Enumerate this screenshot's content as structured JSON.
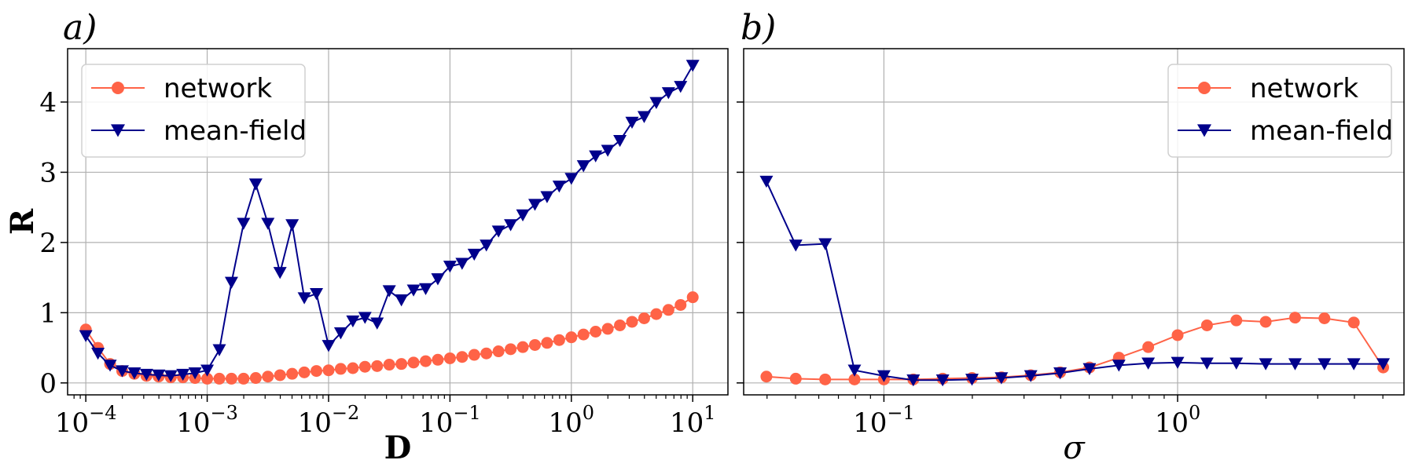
{
  "colors": {
    "network": "#FF6347",
    "mean_field": "#00008B",
    "grid": "#b0b0b0",
    "axes": "#000000"
  },
  "chart_data": [
    {
      "panel": "a)",
      "type": "line",
      "xlabel": "D",
      "ylabel": "R",
      "xscale": "log",
      "xlim": [
        7.08e-05,
        19.5
      ],
      "ylim": [
        -0.17,
        4.76
      ],
      "grid": true,
      "legend_position": "top-left",
      "x_ticks": [
        {
          "v": 0.0001,
          "base": "10",
          "exp": "−4"
        },
        {
          "v": 0.001,
          "base": "10",
          "exp": "−3"
        },
        {
          "v": 0.01,
          "base": "10",
          "exp": "−2"
        },
        {
          "v": 0.1,
          "base": "10",
          "exp": "−1"
        },
        {
          "v": 1,
          "base": "10",
          "exp": "0"
        },
        {
          "v": 10,
          "base": "10",
          "exp": "1"
        }
      ],
      "y_ticks": [
        0,
        1,
        2,
        3,
        4
      ],
      "x": [
        0.0001,
        0.0001259,
        0.0001585,
        0.0001995,
        0.0002512,
        0.0003162,
        0.0003981,
        0.0005012,
        0.000631,
        0.0007943,
        0.001,
        0.001259,
        0.001585,
        0.001995,
        0.002512,
        0.003162,
        0.003981,
        0.005012,
        0.00631,
        0.007943,
        0.01,
        0.01259,
        0.01585,
        0.01995,
        0.02512,
        0.03162,
        0.03981,
        0.05012,
        0.0631,
        0.07943,
        0.1,
        0.1259,
        0.1585,
        0.1995,
        0.2512,
        0.3162,
        0.3981,
        0.5012,
        0.631,
        0.7943,
        1,
        1.259,
        1.585,
        1.995,
        2.512,
        3.162,
        3.981,
        5.012,
        6.31,
        7.943,
        10
      ],
      "series": [
        {
          "name": "network",
          "marker": "circle",
          "color": "#FF6347",
          "values": [
            0.76,
            0.5,
            0.27,
            0.17,
            0.13,
            0.1,
            0.09,
            0.08,
            0.08,
            0.07,
            0.06,
            0.06,
            0.06,
            0.06,
            0.07,
            0.09,
            0.11,
            0.13,
            0.15,
            0.17,
            0.18,
            0.2,
            0.21,
            0.23,
            0.24,
            0.26,
            0.27,
            0.29,
            0.31,
            0.33,
            0.35,
            0.37,
            0.4,
            0.42,
            0.45,
            0.48,
            0.51,
            0.54,
            0.57,
            0.61,
            0.65,
            0.69,
            0.73,
            0.77,
            0.82,
            0.87,
            0.92,
            0.98,
            1.04,
            1.11,
            1.22
          ]
        },
        {
          "name": "mean-field",
          "marker": "triangle-down",
          "color": "#00008B",
          "values": [
            0.67,
            0.42,
            0.25,
            0.17,
            0.14,
            0.12,
            0.11,
            0.1,
            0.12,
            0.14,
            0.18,
            0.47,
            1.43,
            2.27,
            2.83,
            2.27,
            1.57,
            2.25,
            1.21,
            1.27,
            0.53,
            0.71,
            0.88,
            0.93,
            0.85,
            1.31,
            1.18,
            1.32,
            1.34,
            1.48,
            1.66,
            1.7,
            1.83,
            1.96,
            2.16,
            2.25,
            2.39,
            2.54,
            2.65,
            2.8,
            2.91,
            3.09,
            3.23,
            3.31,
            3.45,
            3.71,
            3.79,
            3.99,
            4.13,
            4.22,
            4.52
          ]
        }
      ]
    },
    {
      "panel": "b)",
      "type": "line",
      "xlabel": "σ",
      "ylabel": "",
      "xscale": "log",
      "xlim": [
        0.0333,
        5.9
      ],
      "ylim": [
        -0.17,
        4.76
      ],
      "grid": true,
      "legend_position": "top-right",
      "x_ticks": [
        {
          "v": 0.1,
          "base": "10",
          "exp": "−1"
        },
        {
          "v": 1,
          "base": "10",
          "exp": "0"
        }
      ],
      "y_ticks": [
        0,
        1,
        2,
        3,
        4
      ],
      "x": [
        0.0398,
        0.0501,
        0.0631,
        0.0794,
        0.1,
        0.1259,
        0.1585,
        0.1995,
        0.2512,
        0.3162,
        0.3981,
        0.5012,
        0.631,
        0.7943,
        1,
        1.259,
        1.585,
        1.995,
        2.512,
        3.162,
        3.981,
        5.012
      ],
      "series": [
        {
          "name": "network",
          "marker": "circle",
          "color": "#FF6347",
          "values": [
            0.09,
            0.06,
            0.05,
            0.05,
            0.05,
            0.05,
            0.06,
            0.07,
            0.08,
            0.11,
            0.15,
            0.22,
            0.36,
            0.51,
            0.68,
            0.82,
            0.89,
            0.87,
            0.93,
            0.92,
            0.86,
            0.22
          ]
        },
        {
          "name": "mean-field",
          "marker": "triangle-down",
          "color": "#00008B",
          "values": [
            2.87,
            1.96,
            1.98,
            0.18,
            0.1,
            0.04,
            0.04,
            0.05,
            0.07,
            0.1,
            0.14,
            0.2,
            0.25,
            0.28,
            0.29,
            0.28,
            0.28,
            0.27,
            0.27,
            0.27,
            0.27,
            0.27
          ]
        }
      ]
    }
  ]
}
